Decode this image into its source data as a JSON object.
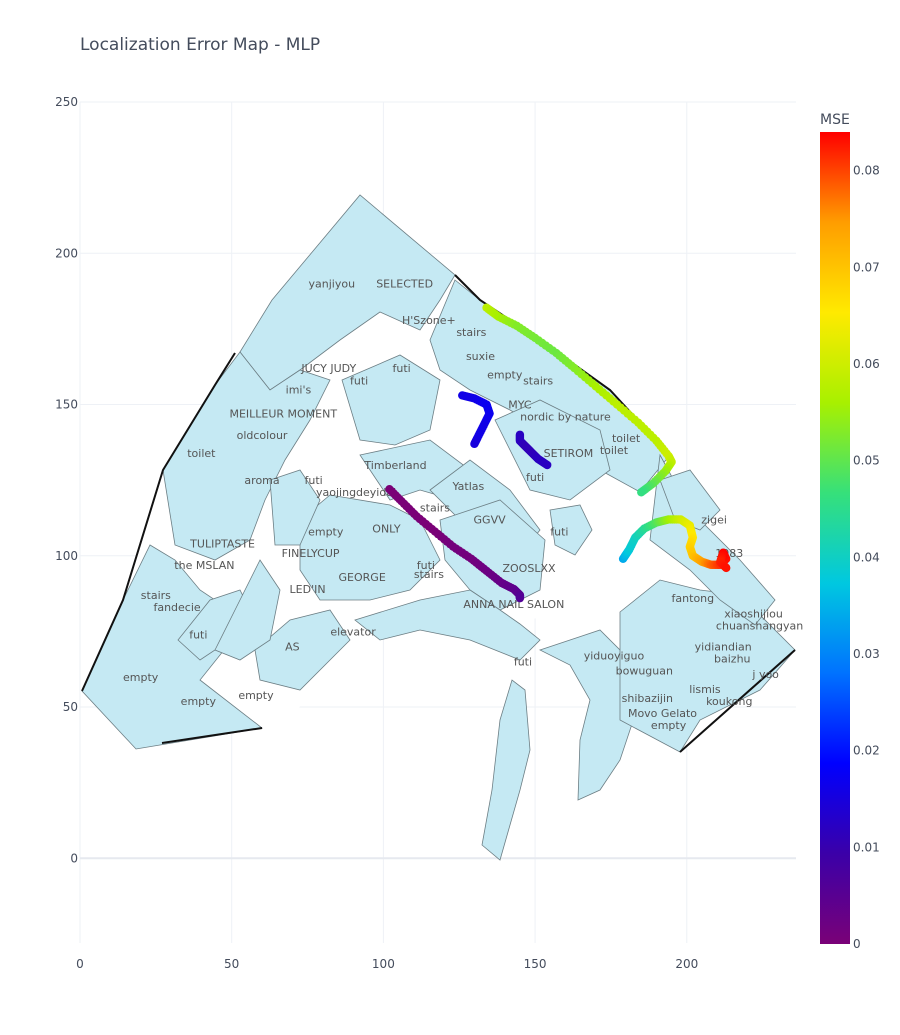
{
  "title": "Localization Error Map - MLP",
  "colorbar": {
    "title": "MSE",
    "ticks": [
      "0",
      "0.01",
      "0.02",
      "0.03",
      "0.04",
      "0.05",
      "0.06",
      "0.07",
      "0.08"
    ],
    "colorscale": [
      "#7a0177",
      "#3b00a8",
      "#0000ff",
      "#0072ff",
      "#00c8e0",
      "#36e07a",
      "#a8f000",
      "#ffea00",
      "#ff9d00",
      "#ff0000"
    ]
  },
  "chart_data": {
    "type": "scatter",
    "title": "Localization Error Map - MLP",
    "xlabel": "",
    "ylabel": "",
    "xlim": [
      0,
      236
    ],
    "ylim": [
      -28,
      250
    ],
    "x_ticks": [
      0,
      50,
      100,
      150,
      200
    ],
    "y_ticks": [
      0,
      50,
      100,
      150,
      200,
      250
    ],
    "grid": true,
    "colorbar_range": [
      0,
      0.084
    ],
    "shop_labels": [
      {
        "text": "yanjiyou",
        "x": 83,
        "y": 190
      },
      {
        "text": "SELECTED",
        "x": 107,
        "y": 190
      },
      {
        "text": "H'Szone+",
        "x": 115,
        "y": 178
      },
      {
        "text": "stairs",
        "x": 129,
        "y": 174
      },
      {
        "text": "suxie",
        "x": 132,
        "y": 166
      },
      {
        "text": "empty",
        "x": 140,
        "y": 160
      },
      {
        "text": "stairs",
        "x": 151,
        "y": 158
      },
      {
        "text": "JUCY JUDY",
        "x": 82,
        "y": 162
      },
      {
        "text": "futi",
        "x": 92,
        "y": 158
      },
      {
        "text": "futi",
        "x": 106,
        "y": 162
      },
      {
        "text": "imi's",
        "x": 72,
        "y": 155
      },
      {
        "text": "MYC",
        "x": 145,
        "y": 150
      },
      {
        "text": "nordic by nature",
        "x": 160,
        "y": 146
      },
      {
        "text": "MEILLEUR MOMENT",
        "x": 67,
        "y": 147
      },
      {
        "text": "oldcolour",
        "x": 60,
        "y": 140
      },
      {
        "text": "toilet",
        "x": 180,
        "y": 139
      },
      {
        "text": "SETIROM",
        "x": 161,
        "y": 134
      },
      {
        "text": "toilet",
        "x": 176,
        "y": 135
      },
      {
        "text": "toilet",
        "x": 40,
        "y": 134
      },
      {
        "text": "Timberland",
        "x": 104,
        "y": 130
      },
      {
        "text": "futi",
        "x": 150,
        "y": 126
      },
      {
        "text": "aroma",
        "x": 60,
        "y": 125
      },
      {
        "text": "futi",
        "x": 77,
        "y": 125
      },
      {
        "text": "Yatlas",
        "x": 128,
        "y": 123
      },
      {
        "text": "yaojingdeyidai",
        "x": 91,
        "y": 121
      },
      {
        "text": "stairs",
        "x": 117,
        "y": 116
      },
      {
        "text": "GGVV",
        "x": 135,
        "y": 112
      },
      {
        "text": "zigei",
        "x": 209,
        "y": 112
      },
      {
        "text": "empty",
        "x": 81,
        "y": 108
      },
      {
        "text": "ONLY",
        "x": 101,
        "y": 109
      },
      {
        "text": "futi",
        "x": 158,
        "y": 108
      },
      {
        "text": "TULIPTASTE",
        "x": 47,
        "y": 104
      },
      {
        "text": "FINELYCUP",
        "x": 76,
        "y": 101
      },
      {
        "text": "1983",
        "x": 214,
        "y": 101
      },
      {
        "text": "the MSLAN",
        "x": 41,
        "y": 97
      },
      {
        "text": "futi",
        "x": 114,
        "y": 97
      },
      {
        "text": "ZOOSLXX",
        "x": 148,
        "y": 96
      },
      {
        "text": "GEORGE",
        "x": 93,
        "y": 93
      },
      {
        "text": "stairs",
        "x": 115,
        "y": 94
      },
      {
        "text": "LED'IN",
        "x": 75,
        "y": 89
      },
      {
        "text": "stairs",
        "x": 25,
        "y": 87
      },
      {
        "text": "fantong",
        "x": 202,
        "y": 86
      },
      {
        "text": "fandecie",
        "x": 32,
        "y": 83
      },
      {
        "text": "ANNA NAIL SALON",
        "x": 143,
        "y": 84
      },
      {
        "text": "xiaoshijiou",
        "x": 222,
        "y": 81
      },
      {
        "text": "chuanshangyan",
        "x": 224,
        "y": 77
      },
      {
        "text": "futi",
        "x": 39,
        "y": 74
      },
      {
        "text": "elevator",
        "x": 90,
        "y": 75
      },
      {
        "text": "AS",
        "x": 70,
        "y": 70
      },
      {
        "text": "yidiandian",
        "x": 212,
        "y": 70
      },
      {
        "text": "yiduoyiguo",
        "x": 176,
        "y": 67
      },
      {
        "text": "baizhu",
        "x": 215,
        "y": 66
      },
      {
        "text": "futi",
        "x": 146,
        "y": 65
      },
      {
        "text": "bowuguan",
        "x": 186,
        "y": 62
      },
      {
        "text": "empty",
        "x": 20,
        "y": 60
      },
      {
        "text": "j yoo",
        "x": 226,
        "y": 61
      },
      {
        "text": "lismis",
        "x": 206,
        "y": 56
      },
      {
        "text": "empty",
        "x": 58,
        "y": 54
      },
      {
        "text": "shibazijin",
        "x": 187,
        "y": 53
      },
      {
        "text": "empty",
        "x": 39,
        "y": 52
      },
      {
        "text": "koukong",
        "x": 214,
        "y": 52
      },
      {
        "text": "Movo Gelato",
        "x": 192,
        "y": 48
      },
      {
        "text": "empty",
        "x": 194,
        "y": 44
      }
    ],
    "series": [
      {
        "points": [
          {
            "x": 102,
            "y": 122,
            "mse": 0.0
          },
          {
            "x": 106,
            "y": 118,
            "mse": 0.0
          },
          {
            "x": 111,
            "y": 113,
            "mse": 0.0
          },
          {
            "x": 117,
            "y": 108,
            "mse": 0.0
          },
          {
            "x": 123,
            "y": 103,
            "mse": 0.001
          },
          {
            "x": 129,
            "y": 99,
            "mse": 0.001
          },
          {
            "x": 134,
            "y": 95,
            "mse": 0.002
          },
          {
            "x": 139,
            "y": 91,
            "mse": 0.003
          },
          {
            "x": 143,
            "y": 89,
            "mse": 0.004
          },
          {
            "x": 145,
            "y": 87,
            "mse": 0.005
          },
          {
            "x": 145,
            "y": 86,
            "mse": 0.006
          }
        ]
      },
      {
        "points": [
          {
            "x": 126,
            "y": 153,
            "mse": 0.016
          },
          {
            "x": 130,
            "y": 152,
            "mse": 0.016
          },
          {
            "x": 134,
            "y": 150,
            "mse": 0.017
          },
          {
            "x": 135,
            "y": 147,
            "mse": 0.017
          },
          {
            "x": 133,
            "y": 143,
            "mse": 0.016
          },
          {
            "x": 131,
            "y": 139,
            "mse": 0.016
          },
          {
            "x": 130,
            "y": 137,
            "mse": 0.015
          }
        ]
      },
      {
        "points": [
          {
            "x": 145,
            "y": 140,
            "mse": 0.012
          },
          {
            "x": 145,
            "y": 138,
            "mse": 0.012
          },
          {
            "x": 147,
            "y": 136,
            "mse": 0.011
          },
          {
            "x": 149,
            "y": 134,
            "mse": 0.011
          },
          {
            "x": 151,
            "y": 132,
            "mse": 0.012
          },
          {
            "x": 154,
            "y": 130,
            "mse": 0.012
          }
        ]
      },
      {
        "points": [
          {
            "x": 134,
            "y": 182,
            "mse": 0.058
          },
          {
            "x": 138,
            "y": 179,
            "mse": 0.056
          },
          {
            "x": 144,
            "y": 176,
            "mse": 0.053
          },
          {
            "x": 150,
            "y": 172,
            "mse": 0.052
          },
          {
            "x": 157,
            "y": 167,
            "mse": 0.051
          },
          {
            "x": 163,
            "y": 162,
            "mse": 0.053
          },
          {
            "x": 170,
            "y": 156,
            "mse": 0.056
          },
          {
            "x": 177,
            "y": 150,
            "mse": 0.058
          },
          {
            "x": 184,
            "y": 144,
            "mse": 0.058
          },
          {
            "x": 190,
            "y": 138,
            "mse": 0.058
          },
          {
            "x": 194,
            "y": 133,
            "mse": 0.06
          },
          {
            "x": 195,
            "y": 131,
            "mse": 0.059
          },
          {
            "x": 193,
            "y": 128,
            "mse": 0.055
          },
          {
            "x": 189,
            "y": 124,
            "mse": 0.05
          },
          {
            "x": 185,
            "y": 121,
            "mse": 0.046
          }
        ]
      },
      {
        "points": [
          {
            "x": 179,
            "y": 99,
            "mse": 0.034
          },
          {
            "x": 181,
            "y": 102,
            "mse": 0.038
          },
          {
            "x": 183,
            "y": 106,
            "mse": 0.04
          },
          {
            "x": 186,
            "y": 109,
            "mse": 0.044
          },
          {
            "x": 190,
            "y": 111,
            "mse": 0.049
          },
          {
            "x": 194,
            "y": 112,
            "mse": 0.055
          },
          {
            "x": 198,
            "y": 112,
            "mse": 0.06
          },
          {
            "x": 201,
            "y": 110,
            "mse": 0.063
          },
          {
            "x": 202,
            "y": 106,
            "mse": 0.066
          },
          {
            "x": 201,
            "y": 103,
            "mse": 0.068
          },
          {
            "x": 202,
            "y": 100,
            "mse": 0.07
          },
          {
            "x": 205,
            "y": 98,
            "mse": 0.074
          },
          {
            "x": 208,
            "y": 97,
            "mse": 0.078
          },
          {
            "x": 211,
            "y": 97,
            "mse": 0.081
          },
          {
            "x": 213,
            "y": 99,
            "mse": 0.083
          },
          {
            "x": 212,
            "y": 101,
            "mse": 0.084
          },
          {
            "x": 211,
            "y": 98,
            "mse": 0.082
          },
          {
            "x": 213,
            "y": 96,
            "mse": 0.083
          }
        ]
      }
    ]
  }
}
